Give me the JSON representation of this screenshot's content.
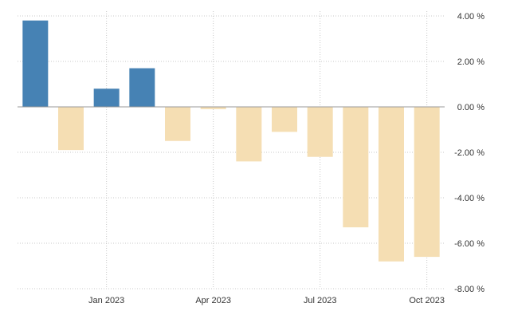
{
  "chart_data": {
    "type": "bar",
    "categories": [
      "Nov 2022",
      "Dec 2022",
      "Jan 2023",
      "Feb 2023",
      "Mar 2023",
      "Apr 2023",
      "May 2023",
      "Jun 2023",
      "Jul 2023",
      "Aug 2023",
      "Sep 2023",
      "Oct 2023"
    ],
    "values": [
      3.8,
      -1.9,
      0.8,
      1.7,
      -1.5,
      -0.1,
      -2.4,
      -1.1,
      -2.2,
      -5.3,
      -6.8,
      -6.6
    ],
    "title": "",
    "xlabel": "",
    "ylabel": "",
    "ylim": [
      -8,
      4
    ],
    "y_ticks": [
      4,
      2,
      0,
      -2,
      -4,
      -6,
      -8
    ],
    "y_tick_labels": [
      "4.00 %",
      "2.00 %",
      "0.00 %",
      "-2.00 %",
      "-4.00 %",
      "-6.00 %",
      "-8.00 %"
    ],
    "x_ticks": [
      {
        "category": "Jan 2023",
        "label": "Jan 2023"
      },
      {
        "category": "Apr 2023",
        "label": "Apr 2023"
      },
      {
        "category": "Jul 2023",
        "label": "Jul 2023"
      },
      {
        "category": "Oct 2023",
        "label": "Oct 2023"
      }
    ],
    "grid": true,
    "legend": "none",
    "colors": {
      "positive": "#4682b4",
      "negative": "#f5deb3"
    }
  }
}
